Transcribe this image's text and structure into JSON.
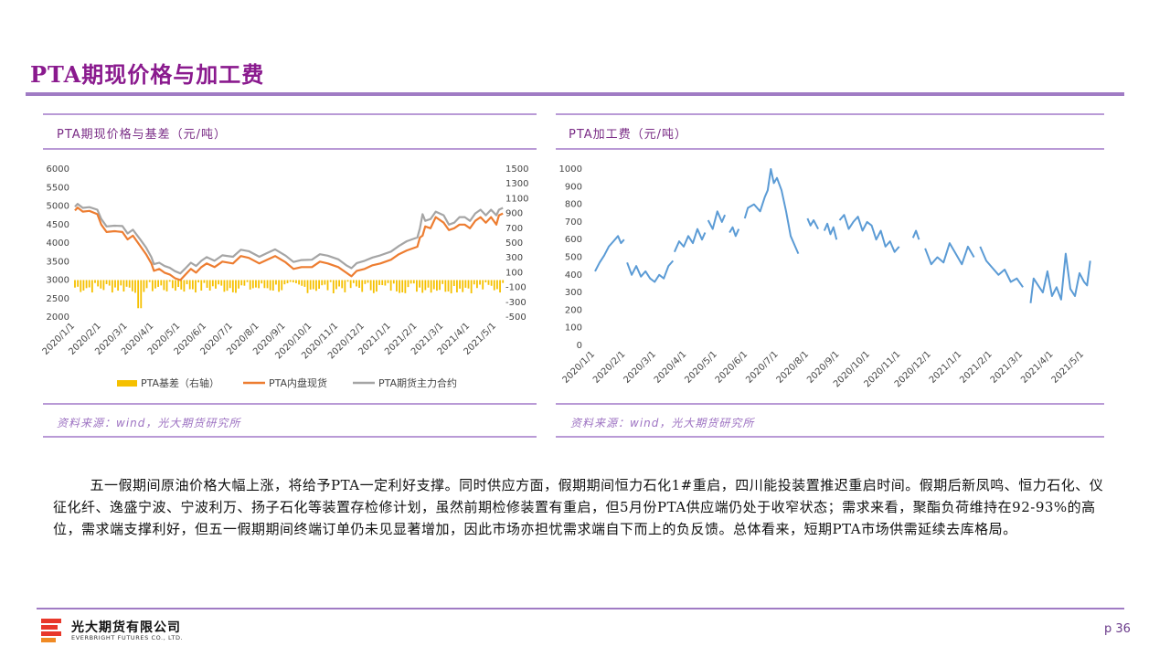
{
  "page": {
    "title": "PTA期现价格与加工费",
    "page_number": "p 36",
    "paragraph": "五一假期间原油价格大幅上涨，将给予PTA一定利好支撑。同时供应方面，假期期间恒力石化1#重启，四川能投装置推迟重启时间。假期后新凤鸣、恒力石化、仪征化纤、逸盛宁波、宁波利万、扬子石化等装置存检修计划，虽然前期检修装置有重启，但5月份PTA供应端仍处于收窄状态；需求来看，聚酯负荷维持在92-93%的高位，需求端支撑利好，但五一假期期间终端订单仍未见显著增加，因此市场亦担忧需求端自下而上的负反馈。总体看来，短期PTA市场供需延续去库格局。"
  },
  "logo": {
    "cn": "光大期货有限公司",
    "en": "EVERBRIGHT FUTURES CO., LTD."
  },
  "left_panel": {
    "title": "PTA期现价格与基差（元/吨）",
    "source": "资料来源：wind，光大期货研究所"
  },
  "right_panel": {
    "title": "PTA加工费（元/吨）",
    "source": "资料来源：wind，光大期货研究所"
  },
  "colors": {
    "basis": "#f5c000",
    "spot": "#ed7d31",
    "futures": "#a5a5a5",
    "margin": "#5b9bd5",
    "accent": "#8a1a8e"
  },
  "chart_data": [
    {
      "type": "bar+line",
      "title": "PTA期现价格与基差（元/吨）",
      "x_ticks": [
        "2020/1/1",
        "2020/2/1",
        "2020/3/1",
        "2020/4/1",
        "2020/5/1",
        "2020/6/1",
        "2020/7/1",
        "2020/8/1",
        "2020/9/1",
        "2020/10/1",
        "2020/11/1",
        "2020/12/1",
        "2021/1/1",
        "2021/2/1",
        "2021/3/1",
        "2021/4/1",
        "2021/5/1"
      ],
      "ylim_left": [
        2000,
        6000
      ],
      "yticks_left": [
        "6000",
        "5500",
        "5000",
        "4500",
        "4000",
        "3500",
        "3000",
        "2500",
        "2000"
      ],
      "ylim_right": [
        -500,
        1500
      ],
      "yticks_right": [
        "1500",
        "1300",
        "1100",
        "900",
        "700",
        "500",
        "300",
        "100",
        "-100",
        "-300",
        "-500"
      ],
      "legend": [
        "PTA基差（右轴）",
        "PTA内盘现货",
        "PTA期货主力合约"
      ],
      "legend_position": "bottom",
      "series": [
        {
          "name": "PTA内盘现货",
          "axis": "left",
          "x": [
            0,
            0.1,
            0.3,
            0.55,
            0.85,
            1.0,
            1.2,
            1.5,
            1.8,
            2.0,
            2.2,
            2.5,
            2.7,
            2.9,
            3.0,
            3.2,
            3.4,
            3.6,
            3.8,
            4.0,
            4.2,
            4.4,
            4.6,
            4.8,
            5.0,
            5.3,
            5.6,
            6.0,
            6.3,
            6.6,
            7.0,
            7.3,
            7.6,
            8.0,
            8.3,
            8.6,
            9.0,
            9.3,
            9.6,
            10.0,
            10.3,
            10.5,
            10.7,
            11.0,
            11.3,
            11.6,
            12.0,
            12.3,
            12.6,
            13.0,
            13.1,
            13.2,
            13.3,
            13.5,
            13.7,
            14.0,
            14.2,
            14.4,
            14.6,
            14.8,
            15.0,
            15.2,
            15.4,
            15.6,
            15.8,
            16.0,
            16.1,
            16.25
          ],
          "y": [
            4880,
            4960,
            4850,
            4870,
            4780,
            4500,
            4300,
            4320,
            4300,
            4100,
            4200,
            3900,
            3700,
            3450,
            3250,
            3300,
            3200,
            3150,
            3050,
            3000,
            3150,
            3300,
            3200,
            3350,
            3450,
            3350,
            3500,
            3450,
            3650,
            3600,
            3450,
            3550,
            3650,
            3480,
            3300,
            3350,
            3350,
            3500,
            3450,
            3350,
            3200,
            3100,
            3250,
            3300,
            3400,
            3450,
            3550,
            3700,
            3800,
            3900,
            4150,
            4200,
            4450,
            4400,
            4700,
            4550,
            4350,
            4400,
            4500,
            4500,
            4400,
            4600,
            4700,
            4550,
            4700,
            4500,
            4750,
            4800
          ]
        },
        {
          "name": "PTA期货主力合约",
          "axis": "left",
          "x": [
            0,
            0.1,
            0.3,
            0.55,
            0.85,
            1.0,
            1.2,
            1.5,
            1.8,
            2.0,
            2.2,
            2.5,
            2.7,
            2.9,
            3.0,
            3.2,
            3.4,
            3.6,
            3.8,
            4.0,
            4.2,
            4.4,
            4.6,
            4.8,
            5.0,
            5.3,
            5.6,
            6.0,
            6.3,
            6.6,
            7.0,
            7.3,
            7.6,
            8.0,
            8.3,
            8.6,
            9.0,
            9.3,
            9.6,
            10.0,
            10.3,
            10.5,
            10.7,
            11.0,
            11.3,
            11.6,
            12.0,
            12.3,
            12.6,
            13.0,
            13.1,
            13.2,
            13.3,
            13.5,
            13.7,
            14.0,
            14.2,
            14.4,
            14.6,
            14.8,
            15.0,
            15.2,
            15.4,
            15.6,
            15.8,
            16.0,
            16.1,
            16.25
          ],
          "y": [
            4980,
            5060,
            4950,
            4970,
            4900,
            4650,
            4450,
            4470,
            4460,
            4260,
            4360,
            4080,
            3880,
            3620,
            3430,
            3470,
            3380,
            3330,
            3240,
            3180,
            3320,
            3470,
            3380,
            3520,
            3620,
            3520,
            3670,
            3630,
            3820,
            3780,
            3630,
            3730,
            3830,
            3660,
            3490,
            3540,
            3550,
            3700,
            3660,
            3560,
            3400,
            3320,
            3460,
            3520,
            3610,
            3670,
            3770,
            3920,
            4050,
            4150,
            4400,
            4780,
            4600,
            4650,
            4850,
            4750,
            4500,
            4550,
            4700,
            4700,
            4600,
            4800,
            4900,
            4750,
            4900,
            4750,
            4900,
            4950
          ]
        },
        {
          "name": "PTA基差（右轴）",
          "axis": "right",
          "type": "bar",
          "range_x": [
            0,
            16.25
          ],
          "typical_min": -180,
          "typical_max": -20,
          "spikes": [
            {
              "x": 2.45,
              "y": -380
            }
          ]
        }
      ]
    },
    {
      "type": "line",
      "title": "PTA加工费（元/吨）",
      "x_ticks": [
        "2020/1/1",
        "2020/2/1",
        "2020/3/1",
        "2020/4/1",
        "2020/5/1",
        "2020/6/1",
        "2020/7/1",
        "2020/8/1",
        "2020/9/1",
        "2020/10/1",
        "2020/11/1",
        "2020/12/1",
        "2021/1/1",
        "2021/2/1",
        "2021/3/1",
        "2021/4/1",
        "2021/5/1"
      ],
      "ylim": [
        0,
        1000
      ],
      "yticks": [
        "1000",
        "900",
        "800",
        "700",
        "600",
        "500",
        "400",
        "300",
        "200",
        "100",
        "0"
      ],
      "series": [
        {
          "name": "PTA加工费",
          "segments": [
            {
              "x": [
                0.0,
                0.15,
                0.3,
                0.45,
                0.6,
                0.75,
                0.85,
                0.95
              ],
              "y": [
                420,
                470,
                510,
                560,
                590,
                620,
                580,
                600
              ]
            },
            {
              "x": [
                1.05,
                1.2,
                1.35,
                1.5,
                1.65,
                1.8,
                1.95,
                2.1,
                2.25,
                2.4,
                2.55
              ],
              "y": [
                470,
                400,
                450,
                390,
                420,
                380,
                360,
                400,
                380,
                450,
                480
              ]
            },
            {
              "x": [
                2.6,
                2.75,
                2.9,
                3.05,
                3.2,
                3.35,
                3.5,
                3.6
              ],
              "y": [
                530,
                590,
                560,
                620,
                580,
                660,
                600,
                640
              ]
            },
            {
              "x": [
                3.7,
                3.85,
                4.0,
                4.15,
                4.25
              ],
              "y": [
                710,
                660,
                760,
                700,
                740
              ]
            },
            {
              "x": [
                4.4,
                4.5,
                4.6,
                4.7
              ],
              "y": [
                640,
                670,
                620,
                660
              ]
            },
            {
              "x": [
                4.9,
                5.0,
                5.2,
                5.4,
                5.55,
                5.65,
                5.75,
                5.85,
                5.95,
                6.1,
                6.25,
                6.4,
                6.55,
                6.65
              ],
              "y": [
                720,
                780,
                800,
                760,
                840,
                880,
                1000,
                920,
                950,
                880,
                760,
                620,
                560,
                520
              ]
            },
            {
              "x": [
                6.95,
                7.05,
                7.15,
                7.3
              ],
              "y": [
                720,
                680,
                710,
                660
              ]
            },
            {
              "x": [
                7.5,
                7.6,
                7.7,
                7.8,
                7.9
              ],
              "y": [
                650,
                690,
                630,
                670,
                600
              ]
            },
            {
              "x": [
                8.0,
                8.15,
                8.3,
                8.45,
                8.6,
                8.75,
                8.9,
                9.05,
                9.2,
                9.35,
                9.5,
                9.65,
                9.8,
                9.95
              ],
              "y": [
                710,
                740,
                660,
                700,
                730,
                650,
                700,
                680,
                600,
                650,
                560,
                590,
                530,
                560
              ]
            },
            {
              "x": [
                10.4,
                10.5,
                10.6
              ],
              "y": [
                610,
                650,
                600
              ]
            },
            {
              "x": [
                10.8,
                11.0,
                11.2,
                11.4,
                11.6,
                11.8,
                12.0,
                12.2,
                12.4
              ],
              "y": [
                550,
                460,
                500,
                470,
                580,
                520,
                460,
                560,
                500
              ]
            },
            {
              "x": [
                12.6,
                12.8,
                13.0,
                13.2,
                13.4,
                13.6,
                13.8,
                14.0
              ],
              "y": [
                560,
                480,
                440,
                400,
                430,
                360,
                380,
                330
              ]
            },
            {
              "x": [
                14.25,
                14.35,
                14.5,
                14.65,
                14.8,
                14.95,
                15.1,
                15.25,
                15.4,
                15.55,
                15.7,
                15.85,
                16.0,
                16.1,
                16.2
              ],
              "y": [
                240,
                380,
                340,
                300,
                420,
                280,
                330,
                260,
                520,
                320,
                280,
                410,
                360,
                340,
                480
              ]
            }
          ]
        }
      ]
    }
  ]
}
